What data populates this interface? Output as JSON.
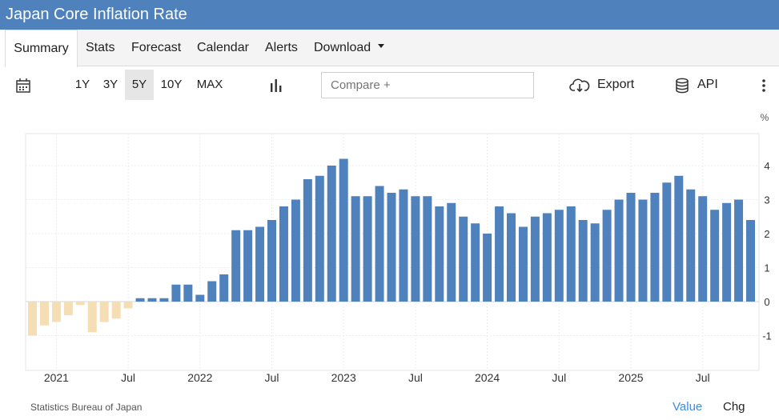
{
  "header": {
    "title": "Japan Core Inflation Rate"
  },
  "tabs": [
    "Summary",
    "Stats",
    "Forecast",
    "Calendar",
    "Alerts",
    "Download"
  ],
  "toolbar": {
    "ranges": [
      "1Y",
      "3Y",
      "5Y",
      "10Y",
      "MAX"
    ],
    "active_range": "5Y",
    "compare_placeholder": "Compare +",
    "export_label": "Export",
    "api_label": "API",
    "icons": [
      "calendar-icon",
      "bar-chart-icon",
      "cloud-download-icon",
      "database-icon",
      "more-vertical-icon"
    ]
  },
  "footer": {
    "source": "Statistics Bureau of Japan",
    "value_label": "Value",
    "chg_label": "Chg"
  },
  "colors": {
    "positive": "#4f81bd",
    "negative": "#f5deb3",
    "accent": "#3c8dde"
  },
  "chart_data": {
    "type": "bar",
    "unit": "%",
    "ylim": [
      -2,
      5
    ],
    "yticks": [
      -1,
      0,
      1,
      2,
      3,
      4
    ],
    "xtick_labels": [
      "2021",
      "Jul",
      "2022",
      "Jul",
      "2023",
      "Jul",
      "2024",
      "Jul",
      "2025",
      "Jul"
    ],
    "xtick_positions": [
      "2021-01",
      "2021-07",
      "2022-01",
      "2022-07",
      "2023-01",
      "2023-07",
      "2024-01",
      "2024-07",
      "2025-01",
      "2025-07"
    ],
    "grid": true,
    "categories": [
      "2020-11",
      "2020-12",
      "2021-01",
      "2021-02",
      "2021-03",
      "2021-04",
      "2021-05",
      "2021-06",
      "2021-07",
      "2021-08",
      "2021-09",
      "2021-10",
      "2021-11",
      "2021-12",
      "2022-01",
      "2022-02",
      "2022-03",
      "2022-04",
      "2022-05",
      "2022-06",
      "2022-07",
      "2022-08",
      "2022-09",
      "2022-10",
      "2022-11",
      "2022-12",
      "2023-01",
      "2023-02",
      "2023-03",
      "2023-04",
      "2023-05",
      "2023-06",
      "2023-07",
      "2023-08",
      "2023-09",
      "2023-10",
      "2023-11",
      "2023-12",
      "2024-01",
      "2024-02",
      "2024-03",
      "2024-04",
      "2024-05",
      "2024-06",
      "2024-07",
      "2024-08",
      "2024-09",
      "2024-10",
      "2024-11",
      "2024-12",
      "2025-01",
      "2025-02",
      "2025-03",
      "2025-04",
      "2025-05",
      "2025-06",
      "2025-07",
      "2025-08",
      "2025-09",
      "2025-10",
      "2025-11"
    ],
    "values": [
      -1.0,
      -0.7,
      -0.6,
      -0.4,
      -0.1,
      -0.9,
      -0.6,
      -0.5,
      -0.2,
      0.1,
      0.1,
      0.1,
      0.5,
      0.5,
      0.2,
      0.6,
      0.8,
      2.1,
      2.1,
      2.2,
      2.4,
      2.8,
      3.0,
      3.6,
      3.7,
      4.0,
      4.2,
      3.1,
      3.1,
      3.4,
      3.2,
      3.3,
      3.1,
      3.1,
      2.8,
      2.9,
      2.5,
      2.3,
      2.0,
      2.8,
      2.6,
      2.2,
      2.5,
      2.6,
      2.7,
      2.8,
      2.4,
      2.3,
      2.7,
      3.0,
      3.2,
      3.0,
      3.2,
      3.5,
      3.7,
      3.3,
      3.1,
      2.7,
      2.9,
      3.0,
      2.4
    ]
  }
}
